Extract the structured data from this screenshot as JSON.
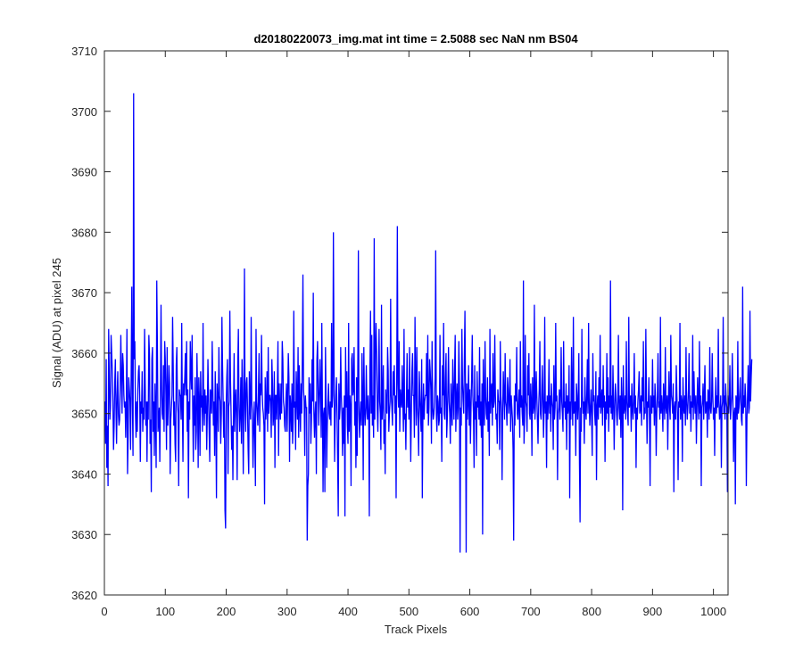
{
  "chart_data": {
    "type": "line",
    "title": "d20180220073_img.mat int time = 2.5088 sec  NaN nm BS04",
    "xlabel": "Track Pixels",
    "ylabel": "Signal (ADU) at pixel 245",
    "xlim": [
      0,
      1024
    ],
    "ylim": [
      3620,
      3710
    ],
    "xticks": [
      0,
      100,
      200,
      300,
      400,
      500,
      600,
      700,
      800,
      900,
      1000
    ],
    "yticks": [
      3620,
      3630,
      3640,
      3650,
      3660,
      3670,
      3680,
      3690,
      3700,
      3710
    ],
    "grid": false,
    "legend": "none",
    "line_color": "#0000ff",
    "series": [
      {
        "x_start": 1,
        "x_step": 1,
        "values": [
          3652,
          3645,
          3659,
          3641,
          3648,
          3638,
          3664,
          3656,
          3649,
          3651,
          3663,
          3660,
          3657,
          3652,
          3644,
          3648,
          3655,
          3659,
          3651,
          3645,
          3653,
          3657,
          3650,
          3648,
          3649,
          3655,
          3663,
          3656,
          3650,
          3660,
          3658,
          3653,
          3651,
          3652,
          3646,
          3651,
          3664,
          3640,
          3646,
          3656,
          3654,
          3652,
          3644,
          3657,
          3671,
          3652,
          3643,
          3703,
          3659,
          3662,
          3650,
          3646,
          3652,
          3647,
          3654,
          3657,
          3658,
          3653,
          3642,
          3652,
          3650,
          3657,
          3647,
          3651,
          3649,
          3664,
          3655,
          3648,
          3652,
          3642,
          3652,
          3649,
          3663,
          3660,
          3645,
          3649,
          3637,
          3659,
          3661,
          3647,
          3652,
          3643,
          3655,
          3650,
          3641,
          3672,
          3662,
          3647,
          3649,
          3651,
          3642,
          3653,
          3668,
          3654,
          3650,
          3649,
          3658,
          3647,
          3662,
          3659,
          3653,
          3644,
          3661,
          3648,
          3652,
          3658,
          3655,
          3640,
          3649,
          3651,
          3653,
          3666,
          3658,
          3648,
          3652,
          3645,
          3642,
          3658,
          3661,
          3652,
          3650,
          3638,
          3654,
          3653,
          3653,
          3649,
          3665,
          3651,
          3642,
          3655,
          3653,
          3656,
          3660,
          3653,
          3662,
          3647,
          3654,
          3636,
          3652,
          3649,
          3662,
          3657,
          3654,
          3663,
          3651,
          3642,
          3653,
          3648,
          3656,
          3644,
          3647,
          3660,
          3653,
          3641,
          3656,
          3652,
          3643,
          3657,
          3651,
          3653,
          3647,
          3665,
          3651,
          3648,
          3654,
          3650,
          3653,
          3644,
          3650,
          3659,
          3653,
          3647,
          3642,
          3654,
          3653,
          3650,
          3662,
          3655,
          3648,
          3652,
          3643,
          3657,
          3649,
          3636,
          3655,
          3652,
          3647,
          3661,
          3653,
          3652,
          3645,
          3650,
          3666,
          3658,
          3652,
          3646,
          3652,
          3634,
          3631,
          3651,
          3656,
          3659,
          3640,
          3651,
          3652,
          3667,
          3656,
          3650,
          3644,
          3648,
          3639,
          3651,
          3660,
          3647,
          3652,
          3654,
          3649,
          3639,
          3658,
          3664,
          3651,
          3647,
          3650,
          3656,
          3645,
          3659,
          3653,
          3640,
          3652,
          3674,
          3651,
          3647,
          3655,
          3656,
          3651,
          3644,
          3640,
          3657,
          3651,
          3649,
          3666,
          3652,
          3650,
          3641,
          3647,
          3652,
          3646,
          3638,
          3664,
          3652,
          3650,
          3648,
          3654,
          3660,
          3647,
          3655,
          3653,
          3663,
          3654,
          3651,
          3650,
          3648,
          3635,
          3656,
          3649,
          3651,
          3657,
          3647,
          3661,
          3650,
          3653,
          3653,
          3652,
          3646,
          3659,
          3655,
          3648,
          3650,
          3657,
          3641,
          3653,
          3653,
          3649,
          3654,
          3662,
          3643,
          3655,
          3651,
          3649,
          3655,
          3650,
          3662,
          3659,
          3652,
          3651,
          3648,
          3647,
          3652,
          3655,
          3647,
          3653,
          3660,
          3656,
          3642,
          3653,
          3651,
          3647,
          3655,
          3645,
          3649,
          3667,
          3651,
          3652,
          3644,
          3657,
          3653,
          3649,
          3661,
          3646,
          3658,
          3651,
          3647,
          3655,
          3650,
          3659,
          3673,
          3654,
          3652,
          3643,
          3653,
          3651,
          3651,
          3629,
          3638,
          3640,
          3656,
          3650,
          3655,
          3645,
          3649,
          3659,
          3652,
          3670,
          3650,
          3646,
          3650,
          3652,
          3640,
          3659,
          3662,
          3654,
          3648,
          3653,
          3659,
          3653,
          3646,
          3665,
          3651,
          3637,
          3650,
          3651,
          3637,
          3661,
          3652,
          3641,
          3648,
          3652,
          3655,
          3650,
          3649,
          3652,
          3648,
          3665,
          3651,
          3653,
          3680,
          3658,
          3642,
          3649,
          3653,
          3656,
          3650,
          3642,
          3633,
          3655,
          3649,
          3651,
          3661,
          3653,
          3650,
          3643,
          3651,
          3645,
          3653,
          3633,
          3661,
          3651,
          3657,
          3648,
          3645,
          3665,
          3647,
          3653,
          3651,
          3638,
          3659,
          3660,
          3653,
          3654,
          3661,
          3648,
          3652,
          3641,
          3656,
          3643,
          3656,
          3677,
          3650,
          3646,
          3650,
          3652,
          3648,
          3660,
          3653,
          3639,
          3661,
          3651,
          3648,
          3650,
          3658,
          3651,
          3649,
          3653,
          3650,
          3633,
          3657,
          3667,
          3650,
          3663,
          3648,
          3653,
          3646,
          3679,
          3649,
          3660,
          3665,
          3660,
          3651,
          3647,
          3654,
          3664,
          3652,
          3650,
          3644,
          3668,
          3649,
          3652,
          3658,
          3645,
          3649,
          3640,
          3654,
          3651,
          3650,
          3661,
          3657,
          3647,
          3650,
          3652,
          3669,
          3653,
          3651,
          3648,
          3657,
          3653,
          3658,
          3650,
          3653,
          3636,
          3656,
          3681,
          3655,
          3651,
          3662,
          3647,
          3654,
          3652,
          3651,
          3658,
          3652,
          3647,
          3664,
          3649,
          3650,
          3644,
          3653,
          3660,
          3651,
          3654,
          3649,
          3661,
          3652,
          3642,
          3650,
          3657,
          3660,
          3653,
          3653,
          3646,
          3666,
          3655,
          3648,
          3661,
          3651,
          3649,
          3643,
          3657,
          3653,
          3650,
          3647,
          3659,
          3636,
          3650,
          3655,
          3649,
          3652,
          3653,
          3653,
          3660,
          3650,
          3663,
          3648,
          3651,
          3659,
          3657,
          3654,
          3645,
          3662,
          3651,
          3649,
          3650,
          3652,
          3656,
          3677,
          3650,
          3647,
          3653,
          3652,
          3648,
          3649,
          3663,
          3650,
          3651,
          3642,
          3658,
          3653,
          3665,
          3650,
          3649,
          3656,
          3660,
          3646,
          3649,
          3654,
          3661,
          3652,
          3650,
          3645,
          3655,
          3651,
          3648,
          3659,
          3653,
          3649,
          3657,
          3663,
          3647,
          3652,
          3655,
          3649,
          3651,
          3662,
          3654,
          3627,
          3651,
          3648,
          3664,
          3655,
          3652,
          3650,
          3659,
          3667,
          3653,
          3627,
          3655,
          3649,
          3652,
          3658,
          3648,
          3654,
          3645,
          3651,
          3656,
          3663,
          3653,
          3650,
          3641,
          3658,
          3649,
          3652,
          3643,
          3657,
          3651,
          3653,
          3649,
          3661,
          3648,
          3652,
          3646,
          3655,
          3630,
          3659,
          3651,
          3648,
          3662,
          3653,
          3650,
          3649,
          3656,
          3647,
          3652,
          3643,
          3664,
          3650,
          3654,
          3655,
          3648,
          3660,
          3651,
          3652,
          3663,
          3653,
          3649,
          3650,
          3645,
          3654,
          3652,
          3652,
          3644,
          3662,
          3653,
          3650,
          3639,
          3651,
          3657,
          3653,
          3649,
          3660,
          3652,
          3651,
          3648,
          3656,
          3654,
          3650,
          3652,
          3659,
          3647,
          3653,
          3651,
          3649,
          3644,
          3629,
          3653,
          3648,
          3655,
          3652,
          3661,
          3650,
          3649,
          3652,
          3654,
          3646,
          3662,
          3651,
          3653,
          3650,
          3648,
          3672,
          3645,
          3649,
          3663,
          3652,
          3651,
          3647,
          3658,
          3653,
          3660,
          3650,
          3649,
          3655,
          3652,
          3643,
          3656,
          3650,
          3651,
          3668,
          3649,
          3652,
          3657,
          3653,
          3649,
          3645,
          3651,
          3654,
          3662,
          3650,
          3649,
          3652,
          3658,
          3653,
          3646,
          3651,
          3666,
          3650,
          3652,
          3641,
          3653,
          3649,
          3652,
          3659,
          3650,
          3653,
          3647,
          3655,
          3652,
          3651,
          3644,
          3658,
          3649,
          3651,
          3665,
          3652,
          3653,
          3639,
          3650,
          3651,
          3654,
          3649,
          3653,
          3661,
          3652,
          3650,
          3647,
          3662,
          3651,
          3652,
          3649,
          3655,
          3644,
          3653,
          3650,
          3651,
          3658,
          3636,
          3652,
          3649,
          3661,
          3653,
          3648,
          3666,
          3650,
          3651,
          3652,
          3643,
          3655,
          3653,
          3649,
          3652,
          3660,
          3642,
          3632,
          3651,
          3647,
          3664,
          3653,
          3650,
          3652,
          3645,
          3656,
          3651,
          3649,
          3653,
          3659,
          3650,
          3665,
          3652,
          3648,
          3651,
          3654,
          3649,
          3643,
          3660,
          3652,
          3653,
          3650,
          3648,
          3657,
          3639,
          3651,
          3653,
          3649,
          3656,
          3651,
          3663,
          3650,
          3652,
          3654,
          3648,
          3658,
          3651,
          3653,
          3642,
          3652,
          3649,
          3660,
          3650,
          3656,
          3647,
          3653,
          3651,
          3672,
          3650,
          3653,
          3649,
          3658,
          3652,
          3644,
          3651,
          3655,
          3653,
          3650,
          3648,
          3652,
          3663,
          3651,
          3649,
          3653,
          3646,
          3656,
          3652,
          3634,
          3658,
          3650,
          3651,
          3653,
          3649,
          3662,
          3652,
          3650,
          3648,
          3666,
          3651,
          3652,
          3653,
          3647,
          3655,
          3651,
          3649,
          3652,
          3660,
          3650,
          3653,
          3641,
          3651,
          3649,
          3652,
          3654,
          3657,
          3650,
          3651,
          3653,
          3648,
          3656,
          3652,
          3662,
          3649,
          3651,
          3650,
          3664,
          3653,
          3645,
          3652,
          3651,
          3656,
          3649,
          3638,
          3653,
          3652,
          3650,
          3659,
          3651,
          3653,
          3648,
          3655,
          3652,
          3643,
          3650,
          3653,
          3660,
          3651,
          3652,
          3649,
          3666,
          3650,
          3653,
          3651,
          3647,
          3655,
          3652,
          3649,
          3661,
          3651,
          3650,
          3653,
          3644,
          3652,
          3657,
          3651,
          3649,
          3663,
          3653,
          3652,
          3650,
          3655,
          3637,
          3651,
          3652,
          3649,
          3658,
          3653,
          3650,
          3639,
          3652,
          3651,
          3665,
          3649,
          3653,
          3652,
          3642,
          3656,
          3651,
          3650,
          3653,
          3648,
          3661,
          3652,
          3649,
          3651,
          3654,
          3660,
          3650,
          3653,
          3647,
          3652,
          3651,
          3663,
          3649,
          3657,
          3652,
          3650,
          3653,
          3645,
          3651,
          3656,
          3652,
          3649,
          3662,
          3650,
          3653,
          3638,
          3651,
          3652,
          3655,
          3649,
          3653,
          3658,
          3650,
          3651,
          3652,
          3646,
          3654,
          3653,
          3649,
          3661,
          3651,
          3650,
          3652,
          3660,
          3653,
          3649,
          3651,
          3643,
          3652,
          3656,
          3650,
          3653,
          3651,
          3664,
          3652,
          3649,
          3650,
          3653,
          3641,
          3651,
          3652,
          3666,
          3650,
          3653,
          3649,
          3655,
          3652,
          3651,
          3637,
          3653,
          3650,
          3652,
          3658,
          3649,
          3651,
          3653,
          3660,
          3652,
          3642,
          3650,
          3651,
          3635,
          3653,
          3652,
          3649,
          3662,
          3650,
          3651,
          3653,
          3656,
          3652,
          3649,
          3648,
          3671,
          3650,
          3653,
          3651,
          3655,
          3652,
          3638,
          3649,
          3653,
          3658,
          3650,
          3651,
          3667,
          3652,
          3656,
          3659
        ]
      }
    ]
  }
}
